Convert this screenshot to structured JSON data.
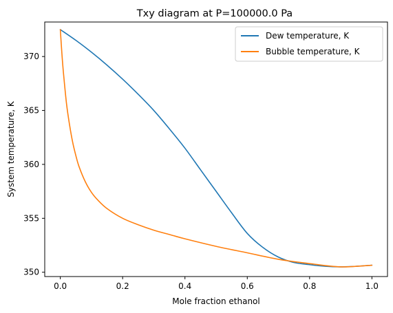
{
  "chart_data": {
    "type": "line",
    "title": "Txy diagram at P=100000.0 Pa",
    "xlabel": "Mole fraction ethanol",
    "ylabel": "System temperature, K",
    "xlim": [
      -0.05,
      1.05
    ],
    "ylim": [
      349.6,
      373.2
    ],
    "xticks": [
      0.0,
      0.2,
      0.4,
      0.6,
      0.8,
      1.0
    ],
    "xtick_labels": [
      "0.0",
      "0.2",
      "0.4",
      "0.6",
      "0.8",
      "1.0"
    ],
    "yticks": [
      350,
      355,
      360,
      365,
      370
    ],
    "ytick_labels": [
      "350",
      "355",
      "360",
      "365",
      "370"
    ],
    "grid": false,
    "legend_position": "top-right",
    "series": [
      {
        "name": "Dew temperature, K",
        "color": "#1f77b4",
        "x": [
          0.0,
          0.05,
          0.1,
          0.15,
          0.2,
          0.25,
          0.3,
          0.35,
          0.4,
          0.45,
          0.5,
          0.55,
          0.6,
          0.65,
          0.7,
          0.75,
          0.8,
          0.85,
          0.9,
          0.95,
          1.0
        ],
        "y": [
          372.5,
          371.5,
          370.4,
          369.2,
          367.9,
          366.5,
          365.0,
          363.3,
          361.5,
          359.5,
          357.5,
          355.5,
          353.6,
          352.3,
          351.4,
          350.9,
          350.7,
          350.55,
          350.5,
          350.55,
          350.65
        ]
      },
      {
        "name": "Bubble temperature, K",
        "color": "#ff7f0e",
        "x": [
          0.0,
          0.005,
          0.01,
          0.02,
          0.03,
          0.04,
          0.05,
          0.06,
          0.08,
          0.1,
          0.12,
          0.15,
          0.2,
          0.25,
          0.3,
          0.35,
          0.4,
          0.5,
          0.6,
          0.7,
          0.8,
          0.9,
          1.0
        ],
        "y": [
          372.5,
          370.3,
          368.5,
          365.6,
          363.6,
          362.0,
          360.8,
          359.8,
          358.4,
          357.4,
          356.7,
          355.9,
          355.0,
          354.4,
          353.9,
          353.5,
          353.1,
          352.4,
          351.8,
          351.2,
          350.8,
          350.5,
          350.65
        ]
      }
    ]
  }
}
